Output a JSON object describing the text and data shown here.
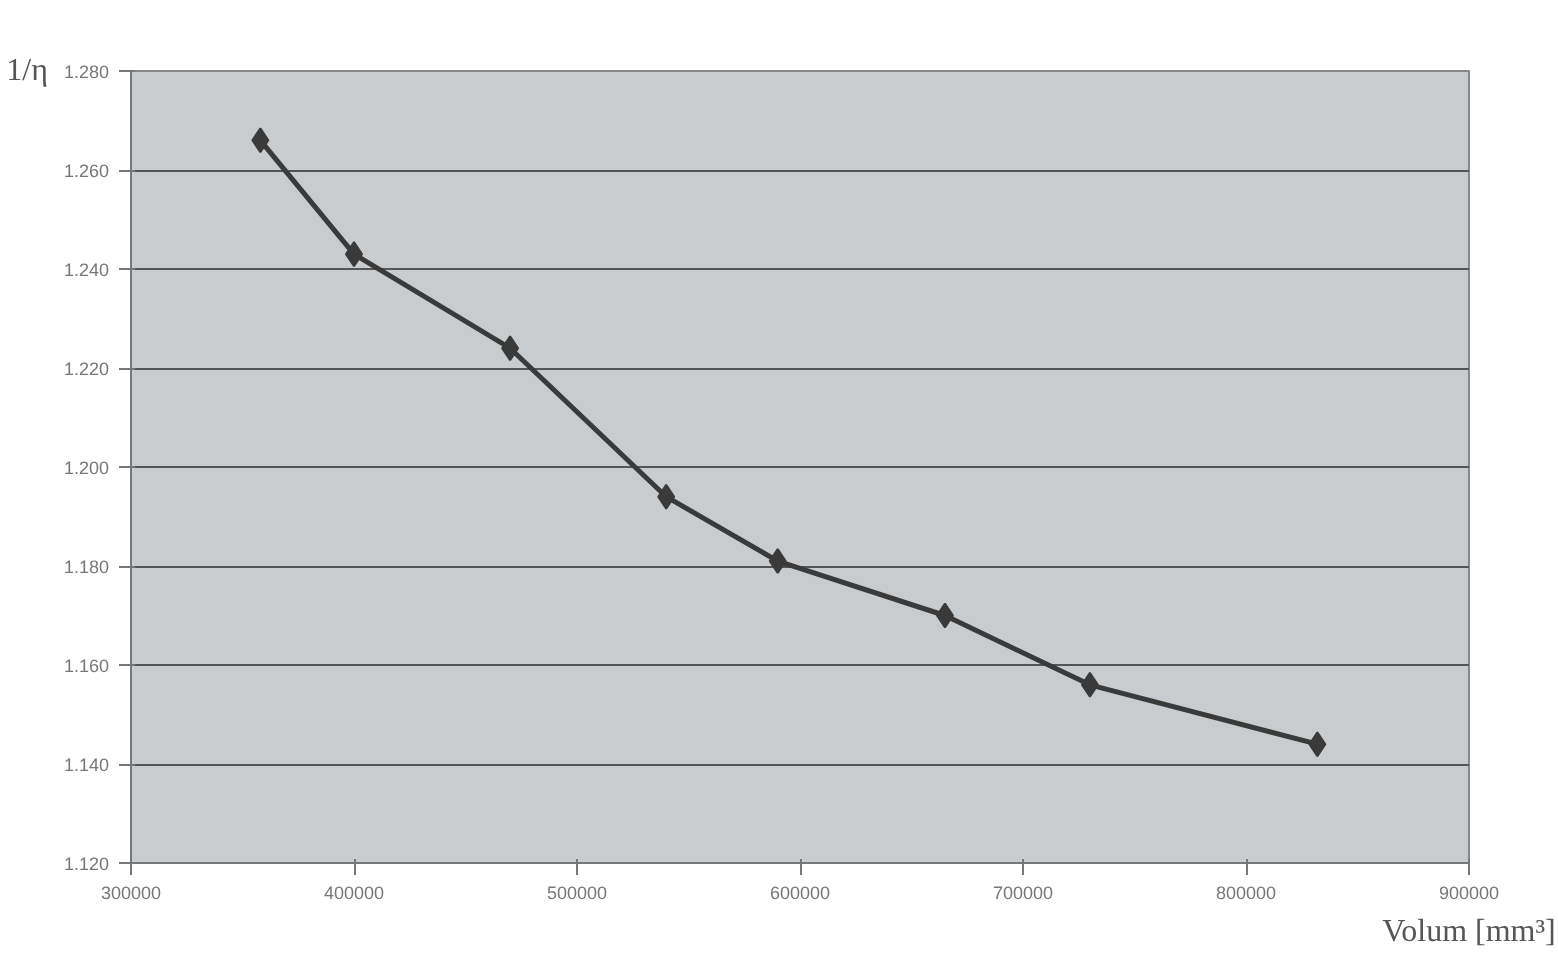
{
  "chart_data": {
    "type": "line",
    "xlabel": "Volum [mm³]",
    "ylabel": "1/η",
    "x": [
      358000,
      400000,
      470000,
      540000,
      590000,
      665000,
      730000,
      832000
    ],
    "series": [
      {
        "color": "#3a3a3a",
        "values": [
          1.266,
          1.243,
          1.224,
          1.194,
          1.181,
          1.17,
          1.156,
          1.144
        ]
      }
    ],
    "xlim": [
      300000,
      900000
    ],
    "xticks": [
      300000,
      400000,
      500000,
      600000,
      700000,
      800000,
      900000
    ],
    "ylim": [
      1.12,
      1.28
    ],
    "yticks": [
      {
        "value": 1.12,
        "label": "1.120"
      },
      {
        "value": 1.14,
        "label": "1.140"
      },
      {
        "value": 1.16,
        "label": "1.160"
      },
      {
        "value": 1.18,
        "label": "1.180"
      },
      {
        "value": 1.2,
        "label": "1.200"
      },
      {
        "value": 1.22,
        "label": "1.220"
      },
      {
        "value": 1.24,
        "label": "1.240"
      },
      {
        "value": 1.26,
        "label": "1.260"
      },
      {
        "value": 1.28,
        "label": "1.280"
      }
    ],
    "grid": "y",
    "marker": "diamond",
    "line_style": "solid"
  }
}
